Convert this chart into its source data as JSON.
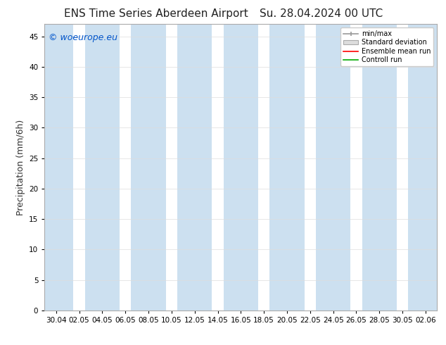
{
  "title_left": "ENS Time Series Aberdeen Airport",
  "title_right": "Su. 28.04.2024 00 UTC",
  "ylabel": "Precipitation (mm/6h)",
  "watermark": "© woeurope.eu",
  "watermark_color": "#0055cc",
  "ylim": [
    0,
    47
  ],
  "yticks": [
    0,
    5,
    10,
    15,
    20,
    25,
    30,
    35,
    40,
    45
  ],
  "xtick_labels": [
    "30.04",
    "02.05",
    "04.05",
    "06.05",
    "08.05",
    "10.05",
    "12.05",
    "14.05",
    "16.05",
    "18.05",
    "20.05",
    "22.05",
    "24.05",
    "26.05",
    "28.05",
    "30.05",
    "02.06"
  ],
  "bg_color": "#ffffff",
  "plot_bg_color": "#ffffff",
  "band_color": "#cce0f0",
  "legend_entries": [
    "min/max",
    "Standard deviation",
    "Ensemble mean run",
    "Controll run"
  ],
  "legend_colors_line": [
    "#999999",
    "#cccccc",
    "#ff0000",
    "#00aa00"
  ],
  "title_fontsize": 11,
  "tick_fontsize": 7.5,
  "ylabel_fontsize": 9,
  "watermark_fontsize": 9
}
